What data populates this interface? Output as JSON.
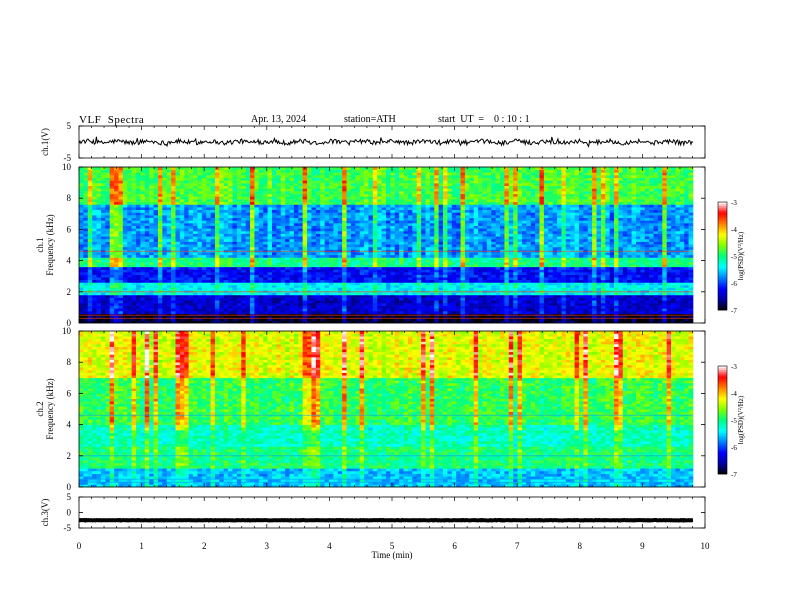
{
  "header": {
    "title": "VLF  Spectra",
    "date": "Apr. 13, 2024",
    "station": "station=ATH",
    "start": "start  UT  =    0 : 10 : 1"
  },
  "chart_data": [
    {
      "type": "line",
      "panel": "ch1-waveform",
      "ylabel": "ch.1(V)",
      "ylim": [
        -5,
        5
      ],
      "yticks": [
        "5",
        "-5"
      ],
      "xlim": [
        0,
        10
      ],
      "baseline_value": 0,
      "description_level": "fluctuating signal around 0 V"
    },
    {
      "type": "heatmap",
      "panel": "ch1-spectrogram",
      "ylabel": "ch.1\nFrequency (kHz)",
      "ylim": [
        0,
        10
      ],
      "yticks": [
        "0",
        "2",
        "4",
        "6",
        "8",
        "10"
      ],
      "xlim": [
        0,
        10
      ],
      "colorbar": {
        "label": "log(PSD)(V²/Hz)",
        "range": [
          -7,
          -3
        ],
        "ticks": [
          "-3",
          "-4",
          "-5",
          "-6",
          "-7"
        ]
      },
      "bands_khz": [
        {
          "from": 0,
          "to": 0.6,
          "logpsd": -6.9
        },
        {
          "from": 0.6,
          "to": 1.8,
          "logpsd": -6.4
        },
        {
          "from": 1.8,
          "to": 2.6,
          "logpsd": -5.4
        },
        {
          "from": 2.6,
          "to": 3.6,
          "logpsd": -6.2
        },
        {
          "from": 3.6,
          "to": 4.2,
          "logpsd": -5.0
        },
        {
          "from": 4.2,
          "to": 7.6,
          "logpsd": -5.7
        },
        {
          "from": 7.6,
          "to": 10,
          "logpsd": -4.8
        }
      ]
    },
    {
      "type": "heatmap",
      "panel": "ch2-spectrogram",
      "ylabel": "ch.2\nFrequency (kHz)",
      "ylim": [
        0,
        10
      ],
      "yticks": [
        "0",
        "2",
        "4",
        "6",
        "8",
        "10"
      ],
      "xlim": [
        0,
        10
      ],
      "colorbar": {
        "label": "log(PSD)(V²/Hz)",
        "range": [
          -7,
          -3
        ],
        "ticks": [
          "-3",
          "-4",
          "-5",
          "-6",
          "-7"
        ]
      },
      "bands_khz": [
        {
          "from": 0,
          "to": 1.2,
          "logpsd": -5.6
        },
        {
          "from": 1.2,
          "to": 2.6,
          "logpsd": -5.0
        },
        {
          "from": 2.6,
          "to": 4.0,
          "logpsd": -5.2
        },
        {
          "from": 4.0,
          "to": 7.0,
          "logpsd": -4.9
        },
        {
          "from": 7.0,
          "to": 10,
          "logpsd": -4.3
        }
      ]
    },
    {
      "type": "line",
      "panel": "ch3-waveform",
      "ylabel": "ch.3(V)",
      "ylim": [
        -5,
        5
      ],
      "yticks": [
        "5",
        "0",
        "-5"
      ],
      "xlim": [
        0,
        10
      ],
      "baseline_value": -2.5,
      "description_level": "flat signal near -2.5 V"
    }
  ],
  "xaxis": {
    "label": "Time  (min)",
    "ticks": [
      "0",
      "1",
      "2",
      "3",
      "4",
      "5",
      "6",
      "7",
      "8",
      "9",
      "10"
    ]
  },
  "colors": {
    "colormap": [
      "#000000",
      "#0000a0",
      "#0000ff",
      "#0080ff",
      "#00ffff",
      "#00ff80",
      "#80ff00",
      "#ffff00",
      "#ff8000",
      "#ff0000",
      "#ffffff"
    ]
  }
}
